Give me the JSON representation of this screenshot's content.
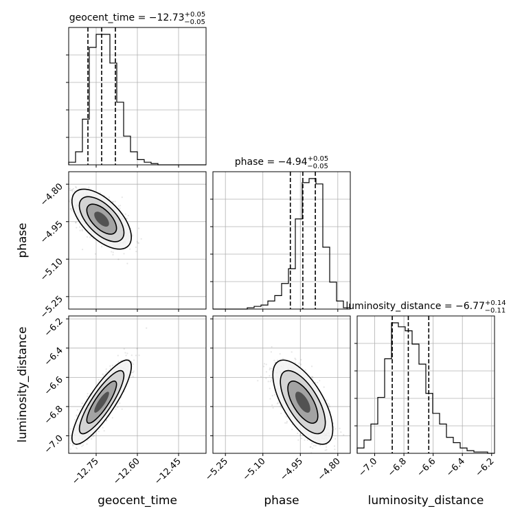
{
  "chart_data": {
    "type": "corner",
    "parameters": [
      "geocent_time",
      "phase",
      "luminosity_distance"
    ],
    "axis_labels": [
      "geocent_time",
      "phase",
      "luminosity_distance"
    ],
    "ranges": [
      [
        -12.85,
        -12.35
      ],
      [
        -5.3,
        -4.75
      ],
      [
        -7.12,
        -6.18
      ]
    ],
    "ticks": [
      [
        -12.75,
        -12.6,
        -12.45
      ],
      [
        -5.25,
        -5.1,
        -4.95,
        -4.8
      ],
      [
        -7.0,
        -6.8,
        -6.6,
        -6.4,
        -6.2
      ]
    ],
    "tick_labels": [
      [
        "−12.75",
        "−12.60",
        "−12.45"
      ],
      [
        "−5.25",
        "−5.10",
        "−4.95",
        "−4.80"
      ],
      [
        "−7.0",
        "−6.8",
        "−6.6",
        "−6.4",
        "−6.2"
      ]
    ],
    "titles": [
      {
        "prefix": "geocent_time = −12.73",
        "plus": "+0.05",
        "minus": "−0.05"
      },
      {
        "prefix": "phase = −4.94",
        "plus": "+0.05",
        "minus": "−0.05"
      },
      {
        "prefix": "luminosity_distance = −6.77",
        "plus": "+0.14",
        "minus": "−0.11"
      }
    ],
    "medians": [
      -12.73,
      -4.94,
      -6.77
    ],
    "quantiles": [
      [
        -12.78,
        -12.73,
        -12.68
      ],
      [
        -4.99,
        -4.94,
        -4.89
      ],
      [
        -6.88,
        -6.77,
        -6.63
      ]
    ],
    "marginals": [
      {
        "edges_start": -12.85,
        "bin_width": 0.025,
        "counts": [
          0.02,
          0.1,
          0.35,
          0.9,
          1.0,
          1.0,
          0.78,
          0.48,
          0.22,
          0.1,
          0.04,
          0.02,
          0.01,
          0,
          0,
          0,
          0,
          0,
          0,
          0
        ]
      },
      {
        "edges_start": -5.3,
        "bin_width": 0.0275,
        "counts": [
          0,
          0,
          0,
          0,
          0,
          0.01,
          0.02,
          0.03,
          0.06,
          0.1,
          0.19,
          0.3,
          0.67,
          0.94,
          0.97,
          0.93,
          0.46,
          0.2,
          0.06,
          0.01
        ]
      },
      {
        "edges_start": -7.12,
        "bin_width": 0.047,
        "counts": [
          0.04,
          0.1,
          0.22,
          0.42,
          0.71,
          0.98,
          0.95,
          0.92,
          0.82,
          0.67,
          0.45,
          0.3,
          0.22,
          0.12,
          0.08,
          0.04,
          0.02,
          0.01,
          0.01,
          0
        ]
      }
    ],
    "correlations": {
      "1_0": -0.6,
      "2_0": 0.85,
      "2_1": -0.65
    },
    "scatter_sigma": [
      0.045,
      0.05,
      0.12
    ]
  }
}
